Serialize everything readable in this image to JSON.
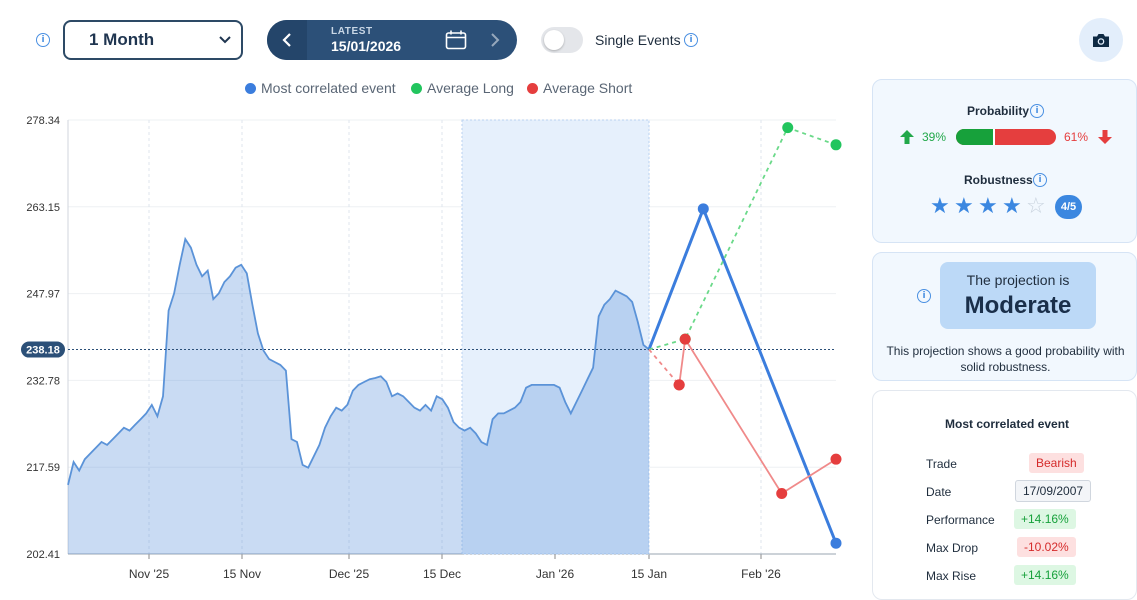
{
  "controls": {
    "period_selected": "1 Month",
    "latest_label": "LATEST",
    "latest_date": "15/01/2026",
    "single_events_label": "Single Events",
    "single_events_on": false
  },
  "legend": [
    {
      "label": "Most correlated event",
      "color": "#3b7ddd"
    },
    {
      "label": "Average Long",
      "color": "#22c55e"
    },
    {
      "label": "Average Short",
      "color": "#e53e3e"
    }
  ],
  "chart_data": {
    "type": "line",
    "y_ticks": [
      "278.34",
      "263.15",
      "247.97",
      "232.78",
      "217.59",
      "202.41"
    ],
    "ylim": [
      202.41,
      278.34
    ],
    "x_ticks": [
      "Nov '25",
      "15 Nov",
      "Dec '25",
      "15 Dec",
      "Jan '26",
      "15 Jan",
      "Feb '26"
    ],
    "current_value_label": "238.18",
    "current_value": 238.18,
    "history": {
      "name": "",
      "values": [
        214.5,
        218.5,
        217.0,
        219.0,
        220.0,
        221.0,
        222.0,
        221.5,
        222.5,
        223.5,
        224.5,
        224.0,
        225.0,
        226.0,
        227.0,
        228.5,
        226.5,
        230.0,
        245.0,
        248.0,
        253.0,
        257.5,
        256.0,
        253.0,
        251.0,
        252.0,
        247.0,
        248.0,
        250.0,
        251.0,
        252.5,
        253.0,
        251.5,
        246.0,
        241.0,
        238.0,
        236.5,
        236.0,
        235.5,
        234.5,
        222.5,
        222.0,
        218.0,
        217.5,
        219.5,
        221.5,
        224.5,
        226.5,
        228.0,
        227.5,
        228.5,
        231.0,
        232.0,
        232.5,
        233.0,
        233.2,
        233.5,
        232.5,
        230.0,
        230.5,
        230.0,
        229.0,
        228.0,
        227.5,
        228.5,
        227.5,
        230.0,
        229.5,
        228.0,
        225.5,
        224.5,
        224.0,
        224.5,
        223.5,
        222.0,
        221.5,
        226.0,
        227.0,
        227.0,
        227.5,
        228.0,
        229.0,
        231.5,
        232.0,
        232.0,
        232.0,
        232.0,
        232.0,
        231.5,
        229.0,
        227.0,
        229.0,
        231.0,
        233.0,
        235.0,
        244.0,
        246.0,
        247.0,
        248.5,
        248.0,
        247.5,
        246.5,
        243.0,
        239.0,
        238.18
      ]
    },
    "projection_window_start": "Dec 19",
    "series": [
      {
        "name": "Most correlated event",
        "color": "#3b7ddd",
        "dashed": false,
        "points": [
          [
            0,
            238.18
          ],
          [
            9,
            262.8
          ],
          [
            31,
            204.3
          ]
        ]
      },
      {
        "name": "Average Long",
        "color": "#22c55e",
        "dashed": true,
        "points": [
          [
            0,
            238.18
          ],
          [
            6,
            240.0
          ],
          [
            23,
            277.0
          ],
          [
            31,
            274.0
          ]
        ]
      },
      {
        "name": "Average Short",
        "color": "#e53e3e",
        "dashed": true,
        "points": [
          [
            0,
            238.18
          ],
          [
            5,
            232.0
          ]
        ]
      },
      {
        "name": "Average Short",
        "color": "#e53e3e",
        "dashed": false,
        "points": [
          [
            5,
            232.0
          ],
          [
            6,
            240.0
          ],
          [
            22,
            213.0
          ],
          [
            31,
            219.0
          ]
        ]
      }
    ],
    "grid": true
  },
  "probability": {
    "title": "Probability",
    "up_pct": "39%",
    "down_pct": "61%",
    "up_value": 0.39,
    "robustness_title": "Robustness",
    "stars_filled": 4,
    "stars_total": 5,
    "robustness_badge": "4/5"
  },
  "projection": {
    "line1": "The projection is",
    "level": "Moderate",
    "desc_line1": "This projection shows a good probability with",
    "desc_line2": "solid robustness."
  },
  "correlated_event": {
    "title": "Most correlated event",
    "rows": [
      {
        "label": "Trade",
        "value": "Bearish",
        "style": "red"
      },
      {
        "label": "Date",
        "value": "17/09/2007",
        "style": "gray"
      },
      {
        "label": "Performance",
        "value": "+14.16%",
        "style": "green"
      },
      {
        "label": "Max Drop",
        "value": "-10.02%",
        "style": "red"
      },
      {
        "label": "Max Rise",
        "value": "+14.16%",
        "style": "green"
      }
    ]
  }
}
